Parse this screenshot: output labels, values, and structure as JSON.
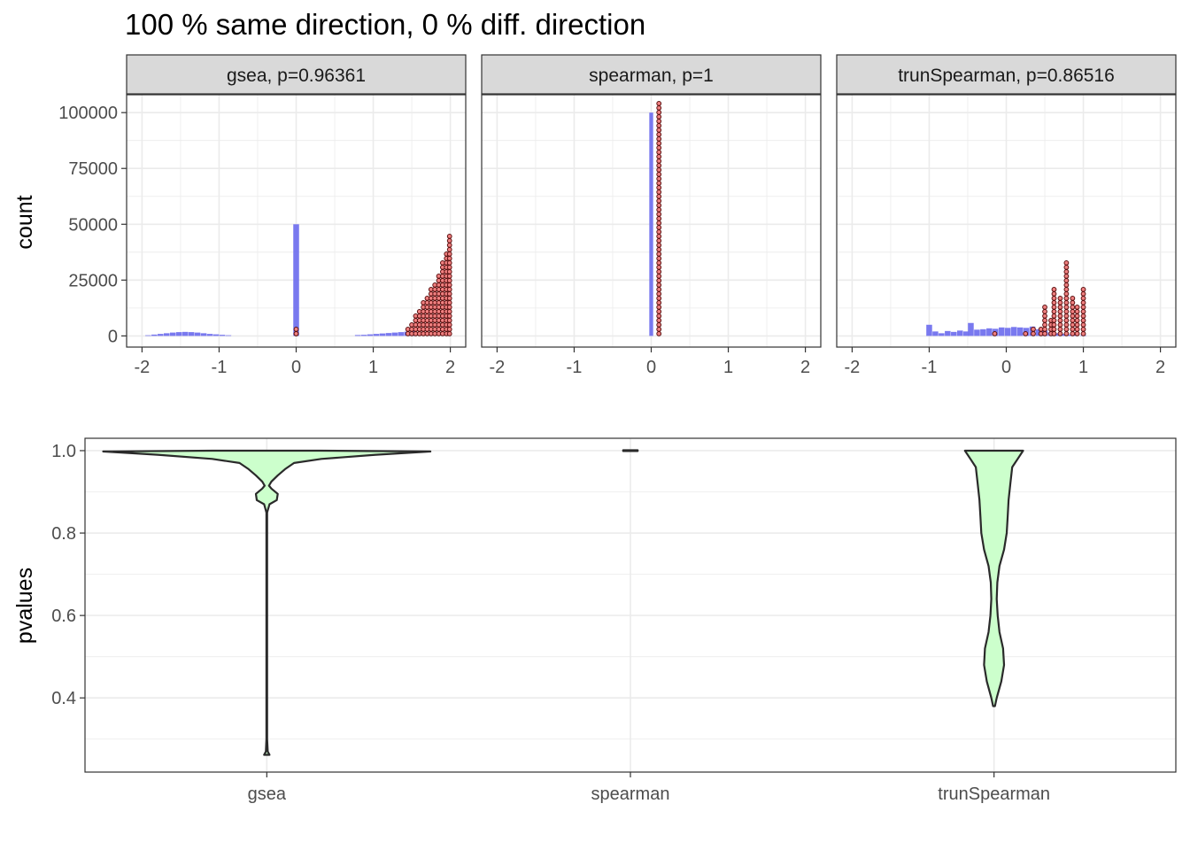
{
  "title": "100 % same direction, 0 % diff. direction",
  "colors": {
    "bar_fill": "#7272ee",
    "point_fill": "#f08080",
    "point_stroke": "#5a1010",
    "violin_fill": "#ccffcc",
    "violin_stroke": "#2a2a2a",
    "strip_fill": "#d9d9d9",
    "grid": "#ebebeb",
    "panel_border": "#333333"
  },
  "chart_data": [
    {
      "type": "bar",
      "chart": "histogram with overlaid dot stacks",
      "ylabel": "count",
      "xlabel": "",
      "xlim": [
        -2.2,
        2.2
      ],
      "ylim": [
        -5000,
        108000
      ],
      "x_ticks": [
        -2,
        -1,
        0,
        1,
        2
      ],
      "x_tick_labels": [
        "-2",
        "-1",
        "0",
        "1",
        "2"
      ],
      "y_ticks": [
        0,
        25000,
        50000,
        75000,
        100000
      ],
      "y_tick_labels": [
        "0",
        "25000",
        "50000",
        "75000",
        "100000"
      ],
      "grid": true,
      "facets": [
        {
          "label": "gsea, p=0.96361",
          "bins": [
            [
              -1.92,
              300
            ],
            [
              -1.84,
              600
            ],
            [
              -1.76,
              900
            ],
            [
              -1.68,
              1200
            ],
            [
              -1.6,
              1500
            ],
            [
              -1.52,
              1700
            ],
            [
              -1.44,
              1800
            ],
            [
              -1.36,
              1700
            ],
            [
              -1.28,
              1500
            ],
            [
              -1.2,
              1200
            ],
            [
              -1.12,
              900
            ],
            [
              -1.04,
              700
            ],
            [
              -0.96,
              500
            ],
            [
              -0.88,
              300
            ],
            [
              0.0,
              50000
            ],
            [
              0.8,
              400
            ],
            [
              0.88,
              500
            ],
            [
              0.96,
              700
            ],
            [
              1.04,
              900
            ],
            [
              1.12,
              1100
            ],
            [
              1.2,
              1300
            ],
            [
              1.28,
              1500
            ],
            [
              1.36,
              1700
            ],
            [
              1.44,
              1900
            ],
            [
              1.52,
              2100
            ]
          ],
          "points": [
            [
              0.0,
              1500
            ],
            [
              0.0,
              3000
            ],
            [
              1.45,
              3000
            ],
            [
              1.5,
              6000
            ],
            [
              1.55,
              9000
            ],
            [
              1.6,
              12000
            ],
            [
              1.65,
              15000
            ],
            [
              1.7,
              18000
            ],
            [
              1.75,
              21000
            ],
            [
              1.8,
              24000
            ],
            [
              1.85,
              28000
            ],
            [
              1.9,
              34000
            ],
            [
              1.95,
              38000
            ],
            [
              1.99,
              44500
            ]
          ]
        },
        {
          "label": "spearman, p=1",
          "bins": [
            [
              0.0,
              100000
            ]
          ],
          "points": [
            [
              0.1,
              105000
            ]
          ]
        },
        {
          "label": "trunSpearman, p=0.86516",
          "bins": [
            [
              -1.0,
              5000
            ],
            [
              -0.92,
              2000
            ],
            [
              -0.84,
              1200
            ],
            [
              -0.76,
              2200
            ],
            [
              -0.68,
              1800
            ],
            [
              -0.6,
              2400
            ],
            [
              -0.52,
              2000
            ],
            [
              -0.46,
              5800
            ],
            [
              -0.38,
              2800
            ],
            [
              -0.3,
              3000
            ],
            [
              -0.22,
              3400
            ],
            [
              -0.14,
              3200
            ],
            [
              -0.06,
              3800
            ],
            [
              0.02,
              3600
            ],
            [
              0.1,
              4000
            ],
            [
              0.18,
              3800
            ],
            [
              0.26,
              3600
            ],
            [
              0.34,
              4200
            ],
            [
              0.42,
              3000
            ],
            [
              0.5,
              2400
            ],
            [
              0.58,
              1600
            ],
            [
              0.66,
              1200
            ],
            [
              0.74,
              900
            ],
            [
              0.82,
              600
            ],
            [
              0.9,
              400
            ],
            [
              1.0,
              300
            ]
          ],
          "points": [
            [
              -0.15,
              1500
            ],
            [
              0.25,
              1500
            ],
            [
              0.35,
              3000
            ],
            [
              0.45,
              4500
            ],
            [
              0.5,
              13000
            ],
            [
              0.58,
              8000
            ],
            [
              0.62,
              21000
            ],
            [
              0.7,
              17000
            ],
            [
              0.78,
              33000
            ],
            [
              0.86,
              18000
            ],
            [
              0.92,
              14000
            ],
            [
              1.0,
              21500
            ]
          ]
        }
      ]
    },
    {
      "type": "violin",
      "ylabel": "pvalues",
      "xlabel": "",
      "categories": [
        "gsea",
        "spearman",
        "trunSpearman"
      ],
      "ylim": [
        0.22,
        1.03
      ],
      "y_ticks": [
        0.4,
        0.6,
        0.8,
        1.0
      ],
      "y_tick_labels": [
        "0.4",
        "0.6",
        "0.8",
        "1.0"
      ],
      "grid": true,
      "violins": [
        {
          "name": "gsea",
          "profile": [
            [
              0.262,
              0.015
            ],
            [
              0.27,
              0.005
            ],
            [
              0.3,
              0.002
            ],
            [
              0.5,
              0.002
            ],
            [
              0.7,
              0.002
            ],
            [
              0.85,
              0.002
            ],
            [
              0.87,
              0.015
            ],
            [
              0.88,
              0.055
            ],
            [
              0.895,
              0.06
            ],
            [
              0.908,
              0.025
            ],
            [
              0.915,
              0.012
            ],
            [
              0.925,
              0.025
            ],
            [
              0.94,
              0.06
            ],
            [
              0.955,
              0.1
            ],
            [
              0.97,
              0.15
            ],
            [
              0.98,
              0.3
            ],
            [
              0.99,
              0.6
            ],
            [
              0.998,
              0.9
            ],
            [
              1.0,
              0.3
            ]
          ]
        },
        {
          "name": "spearman",
          "profile": [
            [
              0.999,
              0.04
            ],
            [
              1.001,
              0.04
            ]
          ]
        },
        {
          "name": "trunSpearman",
          "profile": [
            [
              0.38,
              0.005
            ],
            [
              0.4,
              0.015
            ],
            [
              0.44,
              0.04
            ],
            [
              0.48,
              0.055
            ],
            [
              0.52,
              0.05
            ],
            [
              0.56,
              0.03
            ],
            [
              0.6,
              0.02
            ],
            [
              0.64,
              0.015
            ],
            [
              0.68,
              0.018
            ],
            [
              0.72,
              0.03
            ],
            [
              0.76,
              0.055
            ],
            [
              0.8,
              0.07
            ],
            [
              0.84,
              0.075
            ],
            [
              0.88,
              0.08
            ],
            [
              0.92,
              0.09
            ],
            [
              0.96,
              0.1
            ],
            [
              0.98,
              0.13
            ],
            [
              1.0,
              0.16
            ]
          ]
        }
      ]
    }
  ]
}
